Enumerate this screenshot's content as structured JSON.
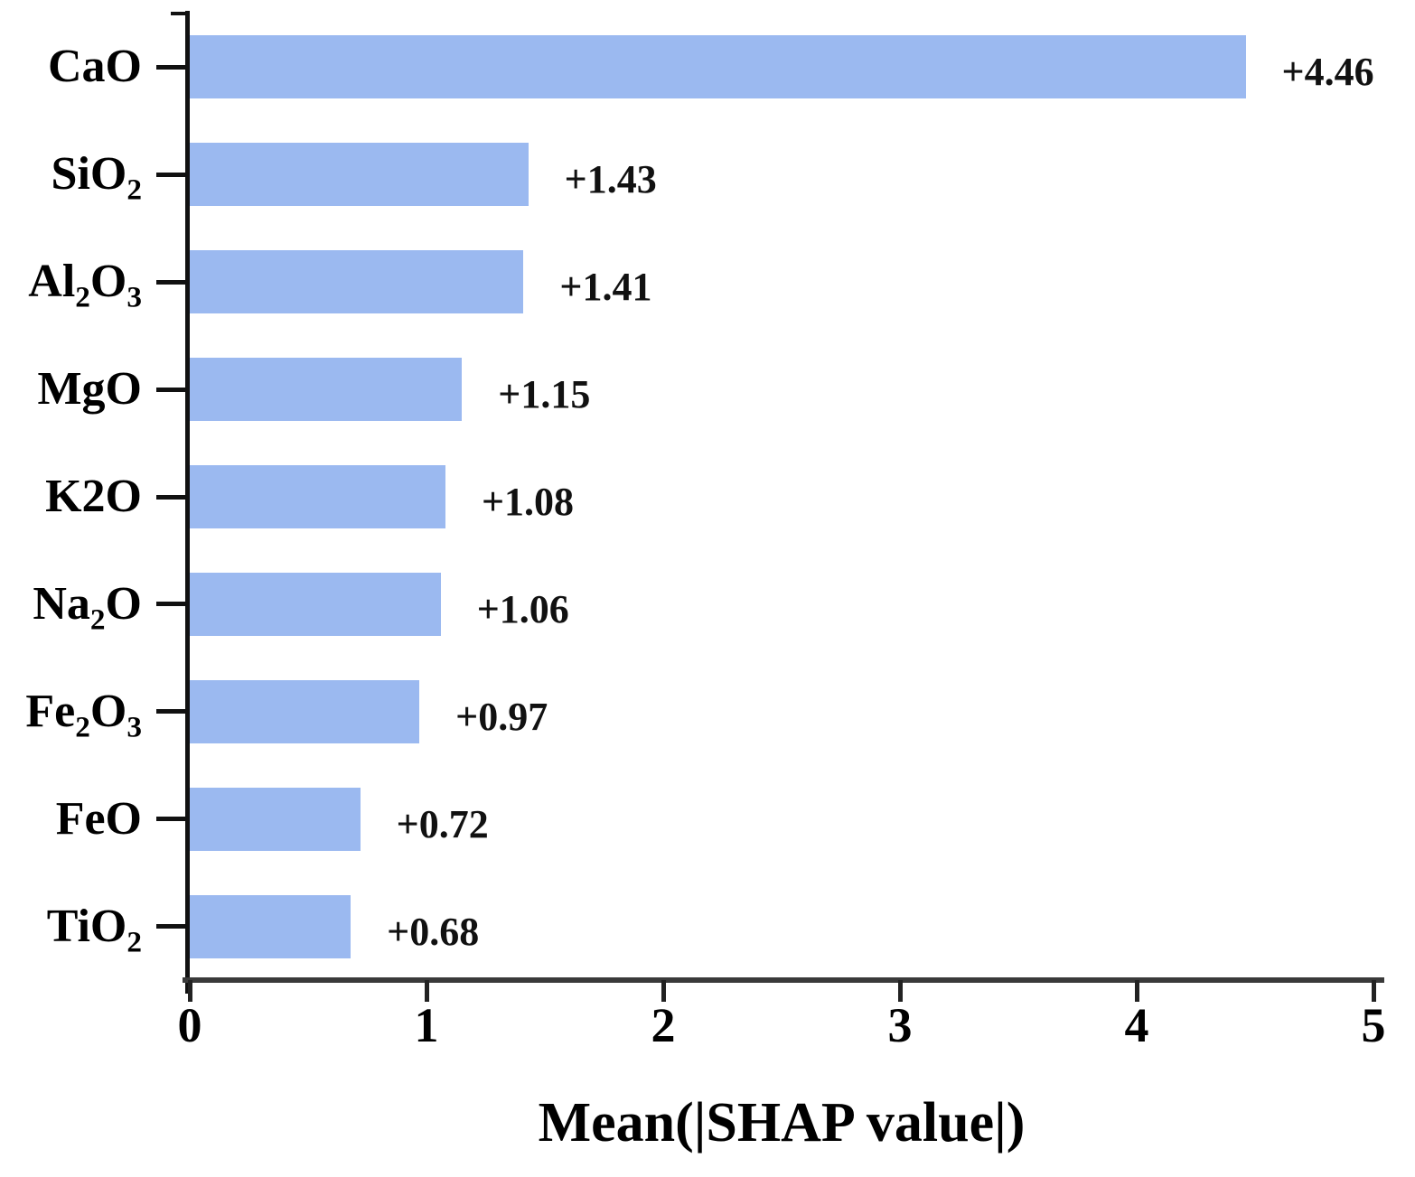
{
  "chart_data": {
    "type": "bar",
    "orientation": "horizontal",
    "title": "",
    "xlabel": "Mean(|SHAP value|)",
    "ylabel": "",
    "xlim": [
      0,
      5
    ],
    "xticks": [
      "0",
      "1",
      "2",
      "3",
      "4",
      "5"
    ],
    "grid": false,
    "legend": null,
    "bar_color": "#9BB9F0",
    "axis_color": "#111111",
    "text_color": "#000000",
    "categories": [
      "CaO",
      "SiO_2",
      "Al_2O_3",
      "MgO",
      "K2O",
      "Na_2O",
      "Fe_2O_3",
      "FeO",
      "TiO_2"
    ],
    "values": [
      4.46,
      1.43,
      1.41,
      1.15,
      1.08,
      1.06,
      0.97,
      0.72,
      0.68
    ],
    "value_labels": [
      "+4.46",
      "+1.43",
      "+1.41",
      "+1.15",
      "+1.08",
      "+1.06",
      "+0.97",
      "+0.72",
      "+0.68"
    ]
  }
}
